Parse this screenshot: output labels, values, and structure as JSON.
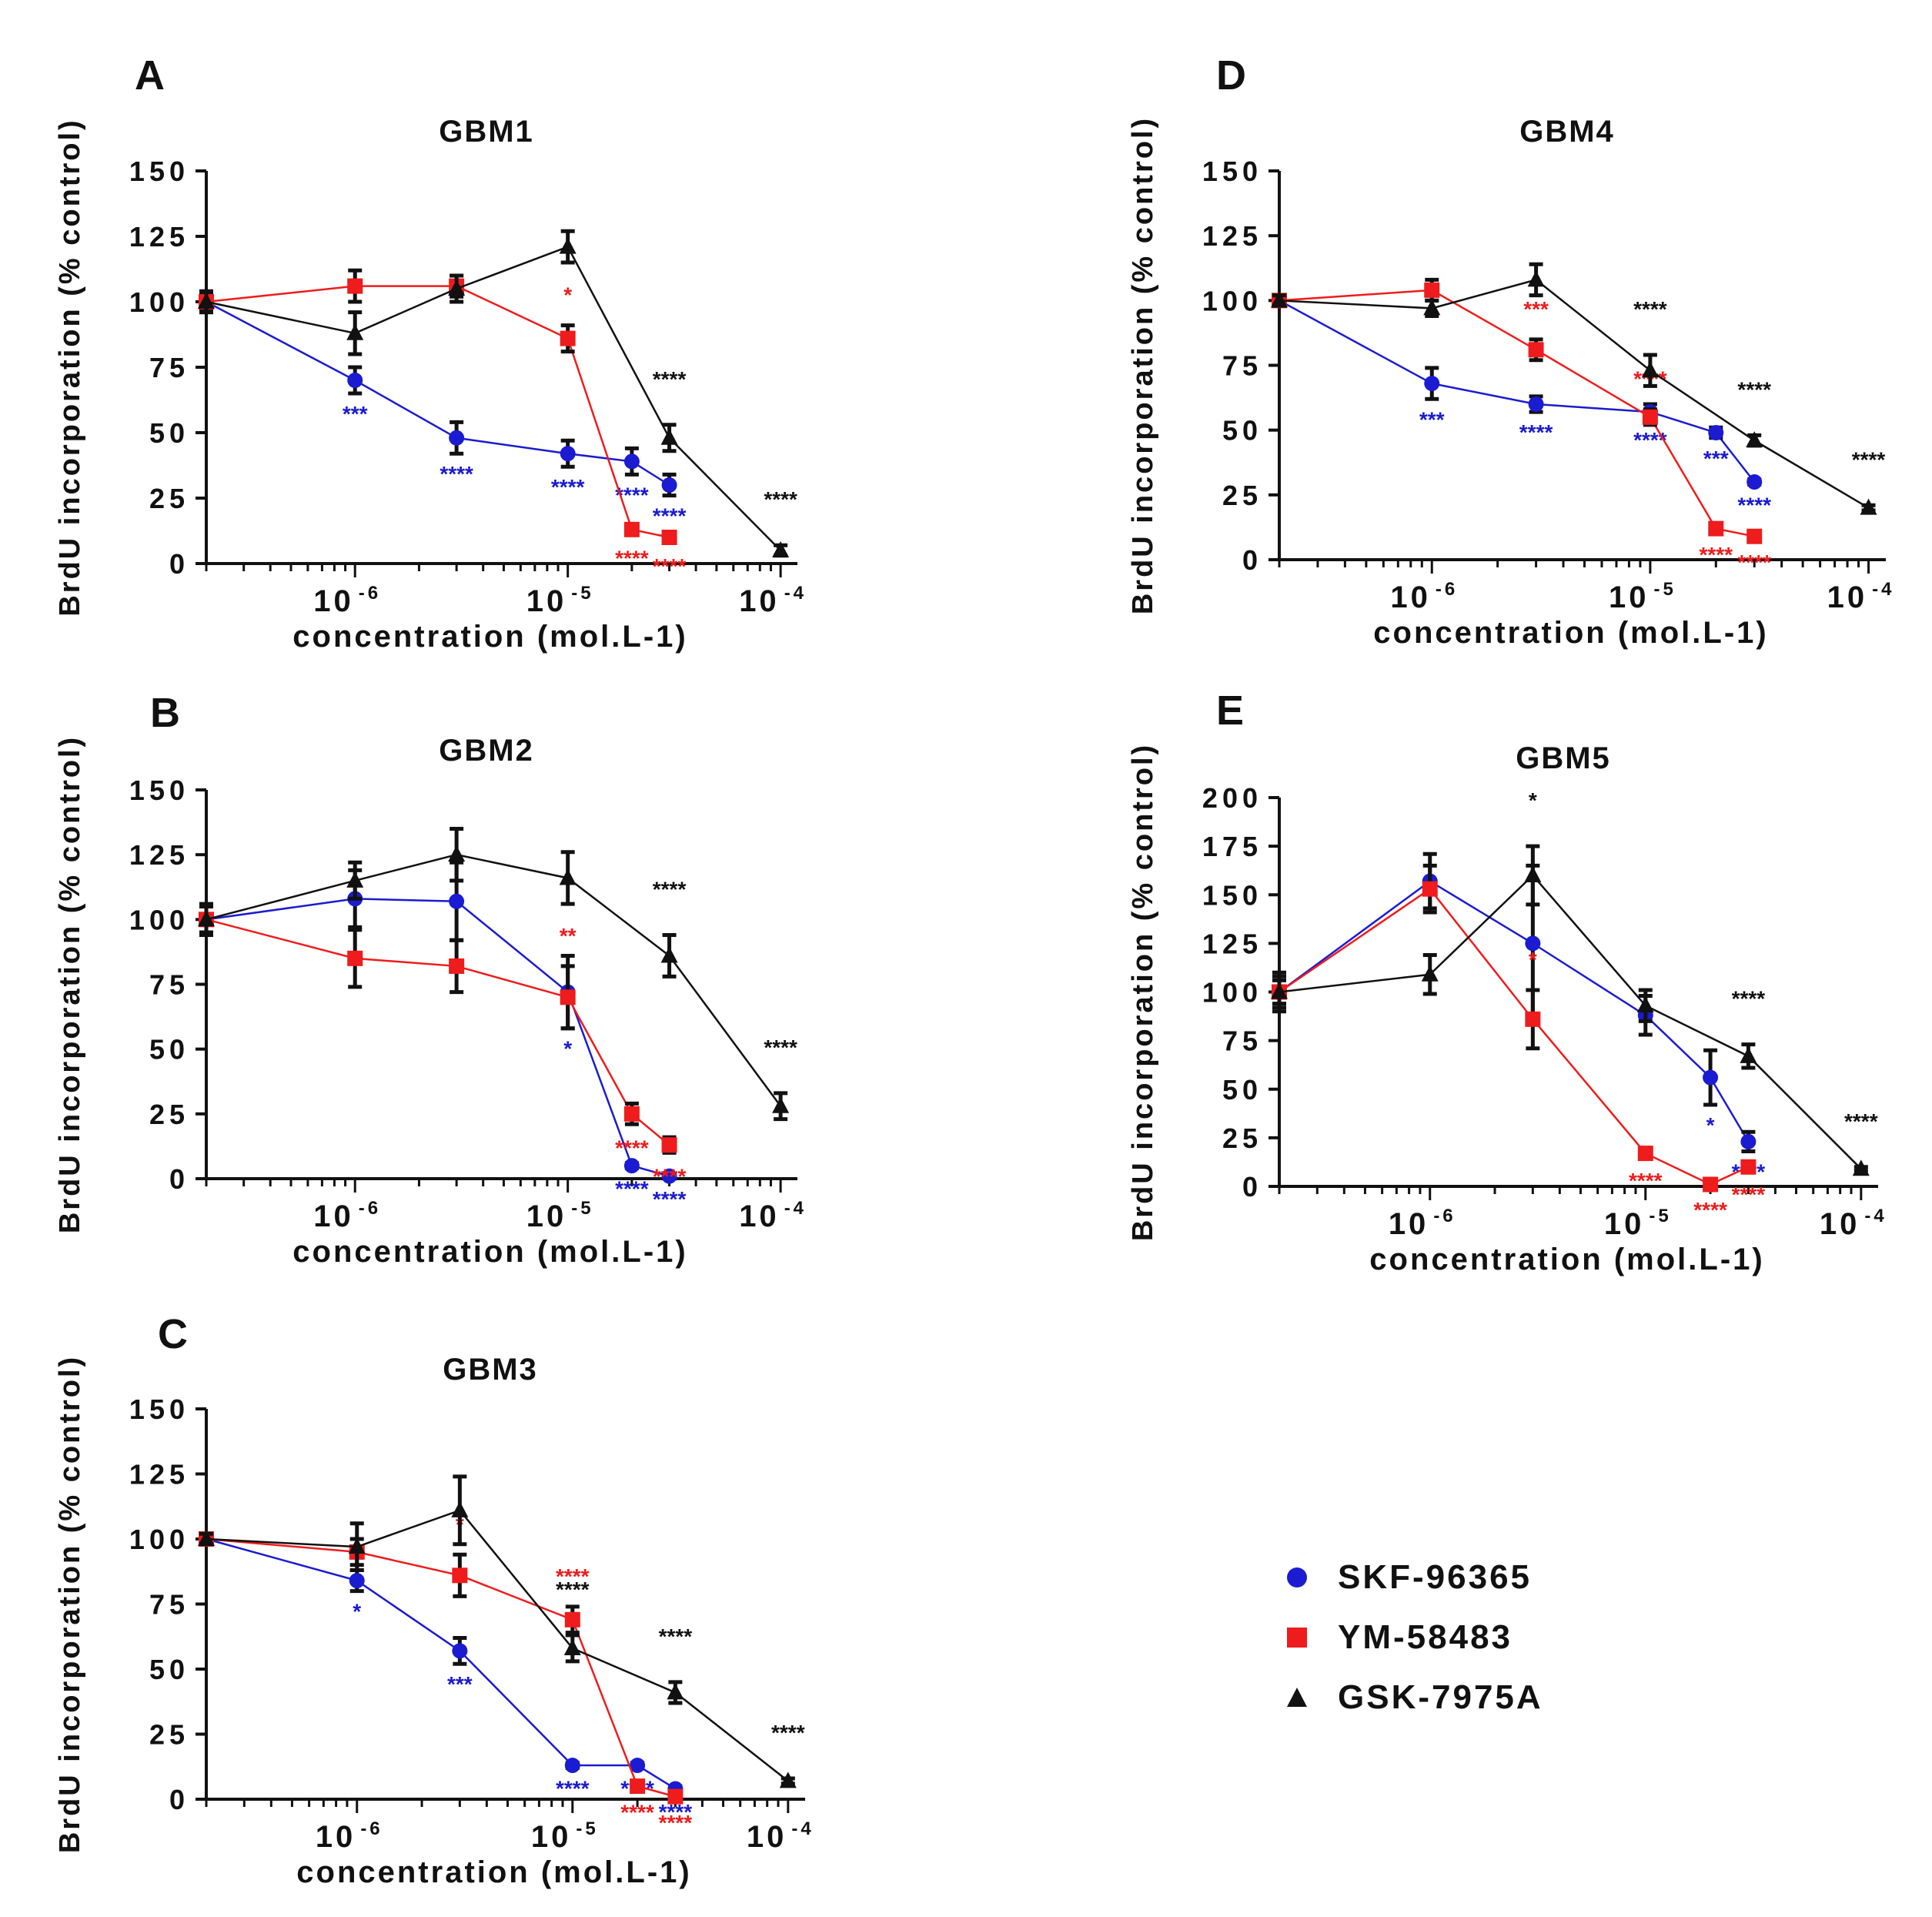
{
  "colors": {
    "skf": "#1b1bd1",
    "ym": "#ee1c1c",
    "gsk": "#111111"
  },
  "legend": [
    {
      "key": "skf",
      "label": "SKF-96365",
      "marker": "circle"
    },
    {
      "key": "ym",
      "label": "YM-58483",
      "marker": "square"
    },
    {
      "key": "gsk",
      "label": "GSK-7975A",
      "marker": "triangle"
    }
  ],
  "chart_data": [
    {
      "panel": "A",
      "title": "GBM1",
      "type": "line",
      "xlabel": "concentration (mol.L-1)",
      "ylabel": "BrdU incorporation (% control)",
      "xscale": "log",
      "xlim": [
        2e-07,
        0.00012
      ],
      "ylim": [
        0,
        150
      ],
      "yticks": [
        0,
        25,
        50,
        75,
        100,
        125,
        150
      ],
      "xtick_values": [
        1e-06,
        1e-05,
        0.0001
      ],
      "xtick_base": "10",
      "xtick_exponents": [
        "-6",
        "-5",
        "-4"
      ],
      "series": [
        {
          "key": "skf",
          "name": "SKF-96365",
          "marker": "circle",
          "x": [
            2e-07,
            1e-06,
            3e-06,
            1e-05,
            2e-05,
            3e-05
          ],
          "y": [
            100,
            70,
            48,
            42,
            39,
            30
          ],
          "err": [
            3,
            5,
            6,
            5,
            5,
            4
          ],
          "sig": [
            "",
            "***",
            "****",
            "****",
            "****",
            "****"
          ]
        },
        {
          "key": "ym",
          "name": "YM-58483",
          "marker": "square",
          "x": [
            2e-07,
            1e-06,
            3e-06,
            1e-05,
            2e-05,
            3e-05
          ],
          "y": [
            100,
            106,
            106,
            86,
            13,
            10
          ],
          "err": [
            4,
            6,
            4,
            5,
            2,
            2
          ],
          "sig": [
            "",
            "",
            "",
            "*",
            "****",
            "****"
          ]
        },
        {
          "key": "gsk",
          "name": "GSK-7975A",
          "marker": "triangle",
          "x": [
            2e-07,
            1e-06,
            3e-06,
            1e-05,
            3e-05,
            0.0001
          ],
          "y": [
            100,
            88,
            105,
            121,
            48,
            5
          ],
          "err": [
            4,
            8,
            5,
            6,
            5,
            2
          ],
          "sig": [
            "",
            "",
            "",
            "",
            "****",
            "****"
          ]
        }
      ]
    },
    {
      "panel": "B",
      "title": "GBM2",
      "type": "line",
      "xlabel": "concentration (mol.L-1)",
      "ylabel": "BrdU incorporation (% control)",
      "xscale": "log",
      "xlim": [
        2e-07,
        0.00012
      ],
      "ylim": [
        0,
        150
      ],
      "yticks": [
        0,
        25,
        50,
        75,
        100,
        125,
        150
      ],
      "xtick_values": [
        1e-06,
        1e-05,
        0.0001
      ],
      "xtick_base": "10",
      "xtick_exponents": [
        "-6",
        "-5",
        "-4"
      ],
      "series": [
        {
          "key": "skf",
          "name": "SKF-96365",
          "marker": "circle",
          "x": [
            2e-07,
            1e-06,
            3e-06,
            1e-05,
            2e-05,
            3e-05
          ],
          "y": [
            100,
            108,
            107,
            72,
            5,
            1
          ],
          "err": [
            5,
            11,
            15,
            14,
            1,
            1
          ],
          "sig": [
            "",
            "",
            "",
            "*",
            "****",
            "****"
          ]
        },
        {
          "key": "ym",
          "name": "YM-58483",
          "marker": "square",
          "x": [
            2e-07,
            1e-06,
            3e-06,
            1e-05,
            2e-05,
            3e-05
          ],
          "y": [
            100,
            85,
            82,
            70,
            25,
            13
          ],
          "err": [
            6,
            11,
            10,
            12,
            4,
            3
          ],
          "sig": [
            "",
            "",
            "",
            "**",
            "****",
            "****"
          ]
        },
        {
          "key": "gsk",
          "name": "GSK-7975A",
          "marker": "triangle",
          "x": [
            2e-07,
            1e-06,
            3e-06,
            1e-05,
            3e-05,
            0.0001
          ],
          "y": [
            100,
            115,
            125,
            116,
            86,
            28
          ],
          "err": [
            5,
            7,
            10,
            10,
            8,
            5
          ],
          "sig": [
            "",
            "",
            "",
            "",
            "****",
            "****"
          ]
        }
      ]
    },
    {
      "panel": "C",
      "title": "GBM3",
      "type": "line",
      "xlabel": "concentration (mol.L-1)",
      "ylabel": "BrdU incorporation (% control)",
      "xscale": "log",
      "xlim": [
        2e-07,
        0.00012
      ],
      "ylim": [
        0,
        150
      ],
      "yticks": [
        0,
        25,
        50,
        75,
        100,
        125,
        150
      ],
      "xtick_values": [
        1e-06,
        1e-05,
        0.0001
      ],
      "xtick_base": "10",
      "xtick_exponents": [
        "-6",
        "-5",
        "-4"
      ],
      "series": [
        {
          "key": "skf",
          "name": "SKF-96365",
          "marker": "circle",
          "x": [
            2e-07,
            1e-06,
            3e-06,
            1e-05,
            2e-05,
            3e-05
          ],
          "y": [
            100,
            84,
            57,
            13,
            13,
            4
          ],
          "err": [
            2,
            4,
            5,
            1,
            1,
            1
          ],
          "sig": [
            "",
            "*",
            "***",
            "****",
            "****",
            "****"
          ]
        },
        {
          "key": "ym",
          "name": "YM-58483",
          "marker": "square",
          "x": [
            2e-07,
            1e-06,
            3e-06,
            1e-05,
            2e-05,
            3e-05
          ],
          "y": [
            100,
            95,
            86,
            69,
            5,
            1
          ],
          "err": [
            2,
            5,
            8,
            5,
            1,
            1
          ],
          "sig": [
            "",
            "",
            "*",
            "****",
            "****",
            "****"
          ]
        },
        {
          "key": "gsk",
          "name": "GSK-7975A",
          "marker": "triangle",
          "x": [
            2e-07,
            1e-06,
            3e-06,
            1e-05,
            3e-05,
            0.0001
          ],
          "y": [
            100,
            97,
            111,
            58,
            41,
            7
          ],
          "err": [
            2,
            9,
            13,
            5,
            4,
            1
          ],
          "sig": [
            "",
            "",
            "",
            "****",
            "****",
            "****"
          ]
        }
      ]
    },
    {
      "panel": "D",
      "title": "GBM4",
      "type": "line",
      "xlabel": "concentration (mol.L-1)",
      "ylabel": "BrdU incorporation (% control)",
      "xscale": "log",
      "xlim": [
        2e-07,
        0.00012
      ],
      "ylim": [
        0,
        150
      ],
      "yticks": [
        0,
        25,
        50,
        75,
        100,
        125,
        150
      ],
      "xtick_values": [
        1e-06,
        1e-05,
        0.0001
      ],
      "xtick_base": "10",
      "xtick_exponents": [
        "-6",
        "-5",
        "-4"
      ],
      "series": [
        {
          "key": "skf",
          "name": "SKF-96365",
          "marker": "circle",
          "x": [
            2e-07,
            1e-06,
            3e-06,
            1e-05,
            2e-05,
            3e-05
          ],
          "y": [
            100,
            68,
            60,
            57,
            49,
            30
          ],
          "err": [
            2,
            6,
            3,
            3,
            2,
            1
          ],
          "sig": [
            "",
            "***",
            "****",
            "****",
            "***",
            "****"
          ]
        },
        {
          "key": "ym",
          "name": "YM-58483",
          "marker": "square",
          "x": [
            2e-07,
            1e-06,
            3e-06,
            1e-05,
            2e-05,
            3e-05
          ],
          "y": [
            100,
            104,
            81,
            55,
            12,
            9
          ],
          "err": [
            2,
            4,
            4,
            3,
            1,
            1
          ],
          "sig": [
            "",
            "",
            "***",
            "****",
            "****",
            "****"
          ]
        },
        {
          "key": "gsk",
          "name": "GSK-7975A",
          "marker": "triangle",
          "x": [
            2e-07,
            1e-06,
            3e-06,
            1e-05,
            3e-05,
            0.0001
          ],
          "y": [
            100,
            97,
            108,
            73,
            46,
            20
          ],
          "err": [
            2,
            3,
            6,
            6,
            2,
            1
          ],
          "sig": [
            "",
            "",
            "",
            "****",
            "****",
            "****"
          ]
        }
      ]
    },
    {
      "panel": "E",
      "title": "GBM5",
      "type": "line",
      "xlabel": "concentration (mol.L-1)",
      "ylabel": "BrdU incorporation (% control)",
      "xscale": "log",
      "xlim": [
        2e-07,
        0.00012
      ],
      "ylim": [
        0,
        200
      ],
      "yticks": [
        0,
        25,
        50,
        75,
        100,
        125,
        150,
        175,
        200
      ],
      "xtick_values": [
        1e-06,
        1e-05,
        0.0001
      ],
      "xtick_base": "10",
      "xtick_exponents": [
        "-6",
        "-5",
        "-4"
      ],
      "series": [
        {
          "key": "skf",
          "name": "SKF-96365",
          "marker": "circle",
          "x": [
            2e-07,
            1e-06,
            3e-06,
            1e-05,
            2e-05,
            3e-05
          ],
          "y": [
            100,
            157,
            125,
            88,
            56,
            23
          ],
          "err": [
            8,
            14,
            40,
            10,
            14,
            5
          ],
          "sig": [
            "",
            "",
            "",
            "",
            "*",
            "****"
          ]
        },
        {
          "key": "ym",
          "name": "YM-58483",
          "marker": "square",
          "x": [
            2e-07,
            1e-06,
            3e-06,
            1e-05,
            2e-05,
            3e-05
          ],
          "y": [
            100,
            153,
            86,
            17,
            1,
            10
          ],
          "err": [
            10,
            12,
            15,
            2,
            1,
            2
          ],
          "sig": [
            "",
            "",
            "*",
            "****",
            "****",
            "****"
          ]
        },
        {
          "key": "gsk",
          "name": "GSK-7975A",
          "marker": "triangle",
          "x": [
            2e-07,
            1e-06,
            3e-06,
            1e-05,
            3e-05,
            0.0001
          ],
          "y": [
            100,
            109,
            160,
            93,
            67,
            9
          ],
          "err": [
            6,
            10,
            15,
            8,
            6,
            1
          ],
          "sig": [
            "",
            "",
            "*",
            "",
            "****",
            "****"
          ]
        }
      ]
    }
  ]
}
